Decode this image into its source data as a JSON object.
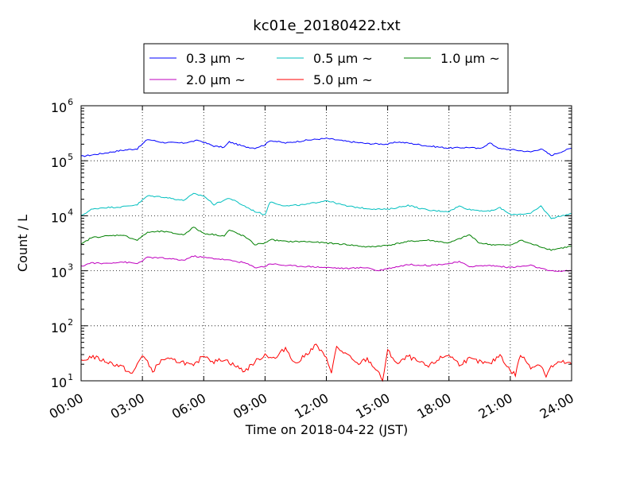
{
  "chart_data": {
    "type": "line",
    "title": "kc01e_20180422.txt",
    "xlabel": "Time on 2018-04-22 (JST)",
    "ylabel": "Count / L",
    "yscale": "log",
    "ylim": [
      10,
      1000000
    ],
    "xlim": [
      "00:00",
      "24:00"
    ],
    "grid": true,
    "legend_position": "top-center",
    "x_tick_labels": [
      "00:00",
      "03:00",
      "06:00",
      "09:00",
      "12:00",
      "15:00",
      "18:00",
      "21:00",
      "24:00"
    ],
    "y_tick_labels": [
      {
        "base": "10",
        "exp": "1"
      },
      {
        "base": "10",
        "exp": "2"
      },
      {
        "base": "10",
        "exp": "3"
      },
      {
        "base": "10",
        "exp": "4"
      },
      {
        "base": "10",
        "exp": "5"
      },
      {
        "base": "10",
        "exp": "6"
      }
    ],
    "series": [
      {
        "name": "0.3 μm ~",
        "color": "#0000ff",
        "anchors": [
          [
            "00:00",
            120000
          ],
          [
            "01:00",
            135000
          ],
          [
            "02:00",
            155000
          ],
          [
            "02:45",
            165000
          ],
          [
            "03:15",
            245000
          ],
          [
            "04:00",
            215000
          ],
          [
            "05:00",
            210000
          ],
          [
            "05:45",
            235000
          ],
          [
            "06:30",
            185000
          ],
          [
            "07:00",
            175000
          ],
          [
            "07:15",
            220000
          ],
          [
            "08:00",
            180000
          ],
          [
            "08:30",
            170000
          ],
          [
            "09:00",
            195000
          ],
          [
            "09:15",
            235000
          ],
          [
            "10:00",
            210000
          ],
          [
            "11:00",
            235000
          ],
          [
            "12:00",
            255000
          ],
          [
            "13:00",
            225000
          ],
          [
            "14:00",
            205000
          ],
          [
            "15:00",
            200000
          ],
          [
            "15:30",
            220000
          ],
          [
            "16:00",
            210000
          ],
          [
            "17:00",
            185000
          ],
          [
            "18:00",
            170000
          ],
          [
            "19:00",
            175000
          ],
          [
            "19:30",
            165000
          ],
          [
            "20:00",
            210000
          ],
          [
            "20:30",
            165000
          ],
          [
            "21:00",
            160000
          ],
          [
            "22:00",
            145000
          ],
          [
            "22:30",
            165000
          ],
          [
            "23:00",
            125000
          ],
          [
            "24:00",
            170000
          ]
        ]
      },
      {
        "name": "0.5 μm ~",
        "color": "#00bfbf",
        "anchors": [
          [
            "00:00",
            10000
          ],
          [
            "00:30",
            13000
          ],
          [
            "01:00",
            14000
          ],
          [
            "02:00",
            14500
          ],
          [
            "02:45",
            16000
          ],
          [
            "03:15",
            23000
          ],
          [
            "04:00",
            22000
          ],
          [
            "05:00",
            19000
          ],
          [
            "05:30",
            25000
          ],
          [
            "06:00",
            23000
          ],
          [
            "06:30",
            16000
          ],
          [
            "07:15",
            21000
          ],
          [
            "08:00",
            15000
          ],
          [
            "08:30",
            12000
          ],
          [
            "09:00",
            10500
          ],
          [
            "09:15",
            18000
          ],
          [
            "10:00",
            15000
          ],
          [
            "11:00",
            16000
          ],
          [
            "12:00",
            19000
          ],
          [
            "13:00",
            15000
          ],
          [
            "14:00",
            13500
          ],
          [
            "15:00",
            13000
          ],
          [
            "16:00",
            15500
          ],
          [
            "17:00",
            12500
          ],
          [
            "18:00",
            12000
          ],
          [
            "18:30",
            15000
          ],
          [
            "19:00",
            13000
          ],
          [
            "20:00",
            12000
          ],
          [
            "20:30",
            14000
          ],
          [
            "21:00",
            10500
          ],
          [
            "22:00",
            11000
          ],
          [
            "22:30",
            15000
          ],
          [
            "23:00",
            9000
          ],
          [
            "24:00",
            11000
          ]
        ]
      },
      {
        "name": "1.0 μm ~",
        "color": "#008000",
        "anchors": [
          [
            "00:00",
            3000
          ],
          [
            "00:30",
            4000
          ],
          [
            "01:00",
            4200
          ],
          [
            "02:00",
            4500
          ],
          [
            "02:45",
            3600
          ],
          [
            "03:15",
            5000
          ],
          [
            "04:00",
            5200
          ],
          [
            "05:00",
            4500
          ],
          [
            "05:30",
            6200
          ],
          [
            "06:00",
            4800
          ],
          [
            "07:00",
            4300
          ],
          [
            "07:15",
            5500
          ],
          [
            "08:00",
            4200
          ],
          [
            "08:30",
            3000
          ],
          [
            "09:00",
            3200
          ],
          [
            "09:15",
            3700
          ],
          [
            "10:00",
            3400
          ],
          [
            "11:00",
            3400
          ],
          [
            "12:00",
            3200
          ],
          [
            "13:00",
            3000
          ],
          [
            "14:00",
            2700
          ],
          [
            "15:00",
            2900
          ],
          [
            "16:00",
            3400
          ],
          [
            "17:00",
            3600
          ],
          [
            "18:00",
            3200
          ],
          [
            "19:00",
            4500
          ],
          [
            "19:30",
            3200
          ],
          [
            "20:00",
            3000
          ],
          [
            "21:00",
            2900
          ],
          [
            "21:30",
            3600
          ],
          [
            "22:00",
            3100
          ],
          [
            "23:00",
            2400
          ],
          [
            "24:00",
            2800
          ]
        ]
      },
      {
        "name": "2.0 μm ~",
        "color": "#bf00bf",
        "anchors": [
          [
            "00:00",
            1200
          ],
          [
            "00:30",
            1400
          ],
          [
            "01:00",
            1350
          ],
          [
            "02:00",
            1450
          ],
          [
            "02:45",
            1350
          ],
          [
            "03:15",
            1750
          ],
          [
            "04:00",
            1700
          ],
          [
            "05:00",
            1550
          ],
          [
            "05:30",
            1850
          ],
          [
            "06:00",
            1750
          ],
          [
            "07:00",
            1600
          ],
          [
            "07:30",
            1500
          ],
          [
            "08:00",
            1400
          ],
          [
            "08:30",
            1150
          ],
          [
            "09:00",
            1200
          ],
          [
            "09:15",
            1350
          ],
          [
            "10:00",
            1250
          ],
          [
            "11:00",
            1200
          ],
          [
            "12:00",
            1150
          ],
          [
            "13:00",
            1100
          ],
          [
            "14:00",
            1150
          ],
          [
            "14:30",
            1000
          ],
          [
            "15:00",
            1100
          ],
          [
            "16:00",
            1300
          ],
          [
            "17:00",
            1250
          ],
          [
            "18:00",
            1350
          ],
          [
            "18:30",
            1450
          ],
          [
            "19:00",
            1200
          ],
          [
            "20:00",
            1250
          ],
          [
            "21:00",
            1150
          ],
          [
            "22:00",
            1250
          ],
          [
            "22:30",
            1100
          ],
          [
            "23:00",
            980
          ],
          [
            "24:00",
            1000
          ]
        ]
      },
      {
        "name": "5.0 μm ~",
        "color": "#ff0000",
        "anchors": [
          [
            "00:00",
            22
          ],
          [
            "00:30",
            28
          ],
          [
            "01:00",
            24
          ],
          [
            "02:00",
            18
          ],
          [
            "02:30",
            13
          ],
          [
            "02:45",
            20
          ],
          [
            "03:00",
            30
          ],
          [
            "03:30",
            15
          ],
          [
            "04:00",
            25
          ],
          [
            "05:00",
            22
          ],
          [
            "05:30",
            18
          ],
          [
            "06:00",
            30
          ],
          [
            "06:30",
            22
          ],
          [
            "07:00",
            25
          ],
          [
            "07:30",
            19
          ],
          [
            "08:00",
            15
          ],
          [
            "08:30",
            22
          ],
          [
            "09:00",
            30
          ],
          [
            "09:30",
            25
          ],
          [
            "10:00",
            40
          ],
          [
            "10:30",
            20
          ],
          [
            "11:00",
            30
          ],
          [
            "11:30",
            45
          ],
          [
            "12:00",
            25
          ],
          [
            "12:15",
            15
          ],
          [
            "12:30",
            40
          ],
          [
            "13:00",
            30
          ],
          [
            "13:30",
            20
          ],
          [
            "14:00",
            25
          ],
          [
            "14:30",
            15
          ],
          [
            "14:45",
            10
          ],
          [
            "15:00",
            35
          ],
          [
            "15:30",
            20
          ],
          [
            "16:00",
            28
          ],
          [
            "16:30",
            22
          ],
          [
            "17:00",
            18
          ],
          [
            "17:30",
            25
          ],
          [
            "18:00",
            30
          ],
          [
            "18:30",
            20
          ],
          [
            "19:00",
            25
          ],
          [
            "19:30",
            22
          ],
          [
            "20:00",
            20
          ],
          [
            "20:30",
            30
          ],
          [
            "21:00",
            15
          ],
          [
            "21:15",
            13
          ],
          [
            "21:30",
            30
          ],
          [
            "22:00",
            18
          ],
          [
            "22:30",
            20
          ],
          [
            "22:45",
            12
          ],
          [
            "23:00",
            18
          ],
          [
            "23:30",
            22
          ],
          [
            "24:00",
            20
          ]
        ]
      }
    ]
  }
}
